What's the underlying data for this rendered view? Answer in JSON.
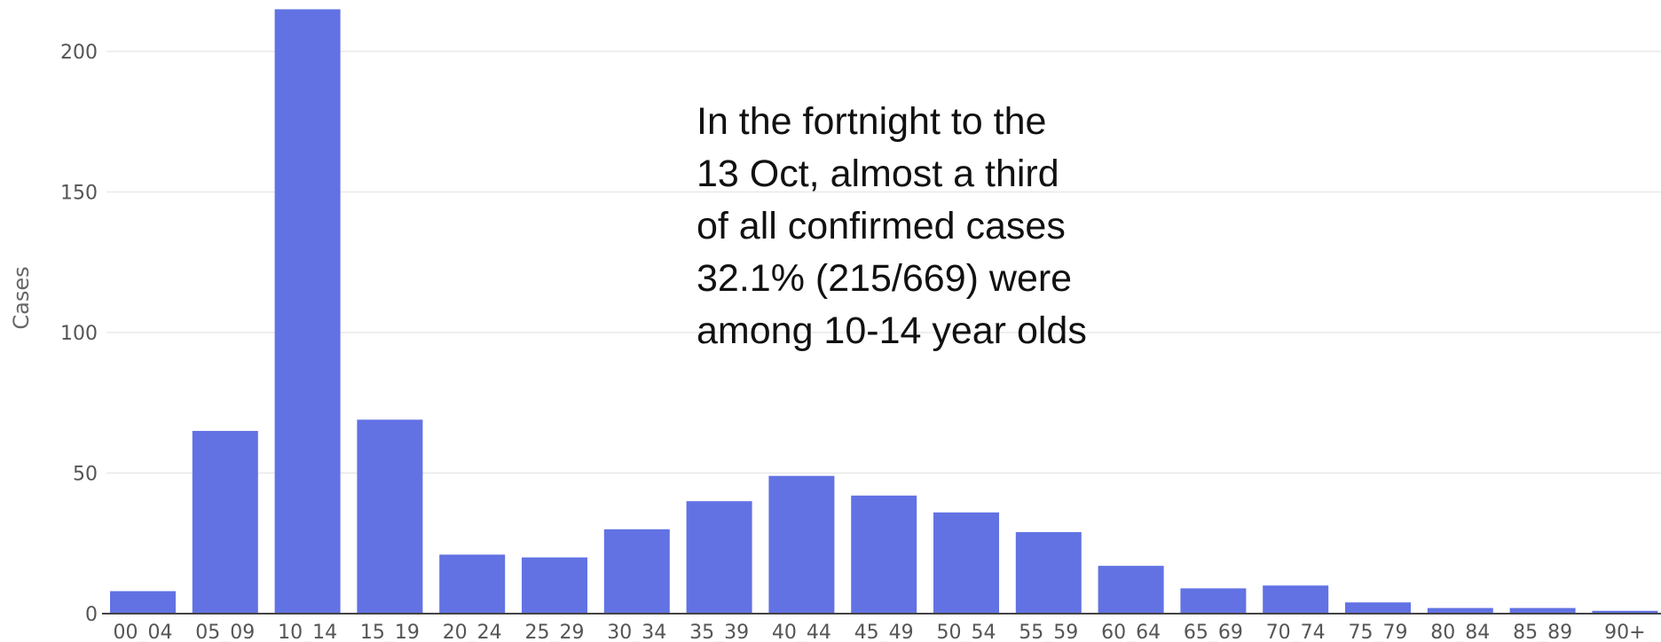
{
  "chart_data": {
    "type": "bar",
    "title": "",
    "xlabel": "",
    "ylabel": "Cases",
    "ylim": [
      0,
      200
    ],
    "yticks": [
      0,
      50,
      100,
      150,
      200
    ],
    "grid": true,
    "bar_color": "#6272e3",
    "categories": [
      "00_04",
      "05_09",
      "10_14",
      "15_19",
      "20_24",
      "25_29",
      "30_34",
      "35_39",
      "40_44",
      "45_49",
      "50_54",
      "55_59",
      "60_64",
      "65_69",
      "70_74",
      "75_79",
      "80_84",
      "85_89",
      "90+"
    ],
    "values": [
      8,
      65,
      215,
      69,
      21,
      20,
      30,
      40,
      49,
      42,
      36,
      29,
      17,
      9,
      10,
      4,
      2,
      2,
      1
    ],
    "annotation": [
      "In the fortnight to the",
      "13 Oct, almost a third",
      "of all confirmed cases",
      "32.1% (215/669) were",
      "among 10-14 year olds"
    ]
  }
}
